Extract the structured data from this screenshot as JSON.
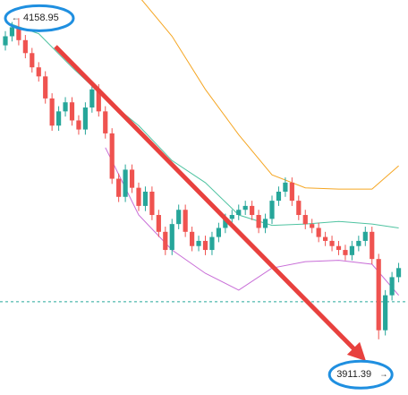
{
  "chart_data": {
    "type": "candlestick",
    "ylim": [
      3868,
      4173
    ],
    "candles": {
      "up_color": "#26a69a",
      "down_color": "#ef5350",
      "open": [
        4138,
        4145,
        4152,
        4142,
        4132,
        4121,
        4114,
        4097,
        4076,
        4087,
        4094,
        4080,
        4073,
        4090,
        4104,
        4087,
        4070,
        4035,
        4021,
        4042,
        4028,
        4014,
        4025,
        4007,
        3994,
        3980,
        4000,
        4011,
        3994,
        3983,
        3987,
        3980,
        3990,
        3997,
        4004,
        4007,
        4011,
        4014,
        4007,
        3997,
        4004,
        4018,
        4025,
        4032,
        4018,
        4007,
        4000,
        3997,
        3990,
        3987,
        3983,
        3980,
        3976,
        3983,
        3987,
        3994,
        3973,
        3918,
        3945,
        3959
      ],
      "high": [
        4149,
        4156,
        4159,
        4146,
        4136,
        4125,
        4118,
        4101,
        4091,
        4098,
        4098,
        4084,
        4094,
        4108,
        4108,
        4091,
        4074,
        4039,
        4046,
        4046,
        4032,
        4029,
        4029,
        4011,
        3998,
        4004,
        4015,
        4015,
        3998,
        3991,
        3991,
        3994,
        4001,
        4008,
        4011,
        4015,
        4018,
        4018,
        4011,
        4008,
        4022,
        4029,
        4036,
        4036,
        4022,
        4011,
        4004,
        4001,
        3994,
        3991,
        3987,
        3984,
        3987,
        3991,
        3998,
        3998,
        3977,
        3949,
        3963,
        3970
      ],
      "low": [
        4134,
        4141,
        4138,
        4128,
        4117,
        4110,
        4093,
        4072,
        4072,
        4083,
        4076,
        4069,
        4069,
        4086,
        4083,
        4066,
        4031,
        4017,
        4017,
        4024,
        4010,
        4010,
        4003,
        3990,
        3976,
        3976,
        3996,
        3990,
        3979,
        3979,
        3976,
        3976,
        3986,
        3993,
        4000,
        4003,
        4007,
        4003,
        3993,
        3993,
        4000,
        4014,
        4021,
        4014,
        4003,
        3996,
        3993,
        3986,
        3983,
        3979,
        3976,
        3972,
        3972,
        3979,
        3983,
        3969,
        3911,
        3914,
        3941,
        3955
      ],
      "close": [
        4145,
        4152,
        4142,
        4132,
        4121,
        4114,
        4097,
        4076,
        4087,
        4094,
        4080,
        4073,
        4090,
        4104,
        4087,
        4070,
        4035,
        4021,
        4042,
        4028,
        4014,
        4025,
        4007,
        3994,
        3980,
        4000,
        4011,
        3994,
        3983,
        3987,
        3980,
        3990,
        3997,
        4004,
        4007,
        4011,
        4014,
        4007,
        3997,
        4004,
        4018,
        4025,
        4032,
        4018,
        4007,
        4000,
        3997,
        3990,
        3987,
        3983,
        3980,
        3976,
        3983,
        3987,
        3994,
        3973,
        3918,
        3945,
        3959,
        3966
      ]
    },
    "bands": [
      {
        "color": "#f5a623",
        "x": [
          0,
          5,
          10,
          15,
          20,
          25,
          30,
          35,
          40,
          45,
          50,
          55,
          59
        ],
        "values": [
          null,
          null,
          null,
          null,
          4176,
          4145,
          4104,
          4069,
          4038,
          4028,
          4027,
          4027,
          4045
        ]
      },
      {
        "color": "#4fc3a1",
        "x": [
          0,
          5,
          10,
          15,
          20,
          25,
          30,
          35,
          40,
          45,
          50,
          55,
          59
        ],
        "values": [
          4156,
          4147,
          4121,
          4097,
          4076,
          4049,
          4032,
          4007,
          3999,
          4000,
          4002,
          4000,
          3997
        ]
      },
      {
        "color": "#c86dd7",
        "x": [
          0,
          5,
          10,
          15,
          20,
          25,
          30,
          35,
          40,
          45,
          50,
          55,
          59
        ],
        "values": [
          null,
          null,
          null,
          4059,
          4007,
          3980,
          3962,
          3949,
          3966,
          3971,
          3972,
          3969,
          3945
        ]
      }
    ],
    "price_line": {
      "value": 3940,
      "color": "#26a69a"
    },
    "high_marker": {
      "value": 4158.95,
      "arrow": "←",
      "index": 2
    },
    "low_marker": {
      "value": 3911.39,
      "arrow": "→",
      "index": 56
    }
  }
}
